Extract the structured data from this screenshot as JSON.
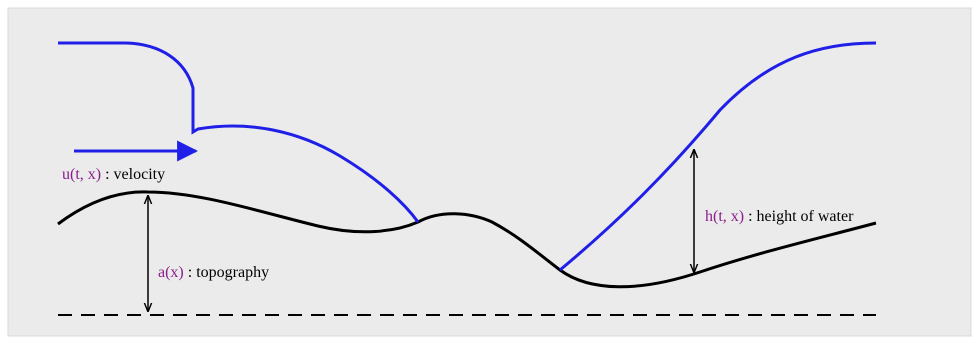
{
  "colors": {
    "panel_background": "#ebebeb",
    "panel_border": "#d8d8d8",
    "water_surface": "#1f1fe8",
    "velocity_arrow": "#1f1fe8",
    "terrain": "#000000",
    "datum_line": "#000000",
    "math_text": "#8b1e8b"
  },
  "labels": {
    "velocity": {
      "math": "u(t, x)",
      "text": " : velocity"
    },
    "height": {
      "math": "h(t, x)",
      "text": " : height of water"
    },
    "topography": {
      "math": "a(x)",
      "text": " : topography"
    }
  },
  "elements": [
    "water-surface-left-curve",
    "water-surface-right-curve",
    "topography-curve",
    "datum-dashed-line",
    "velocity-arrow",
    "height-double-arrow",
    "topography-double-arrow"
  ]
}
